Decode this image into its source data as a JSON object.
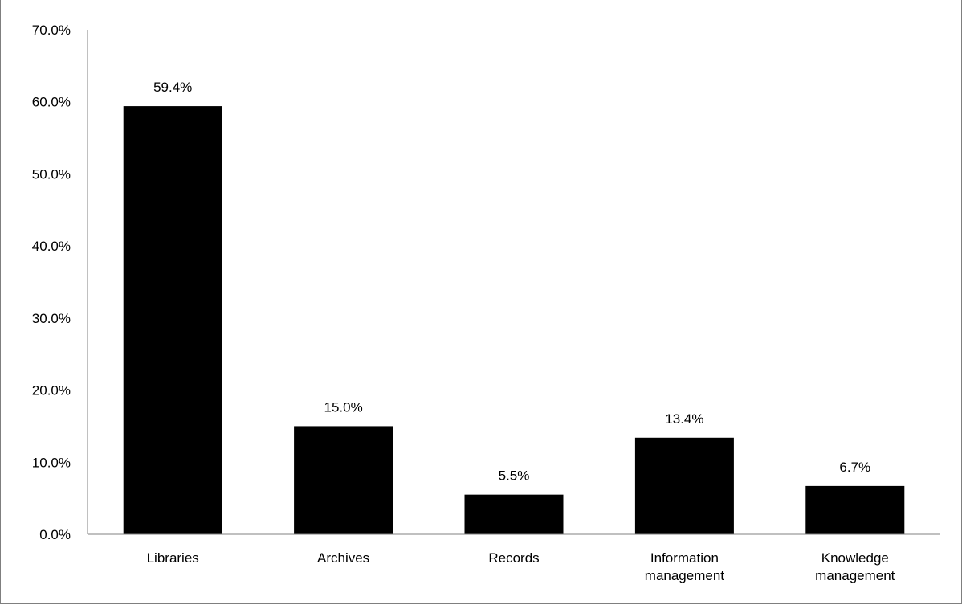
{
  "chart_data": {
    "type": "bar",
    "categories": [
      [
        "Libraries"
      ],
      [
        "Archives"
      ],
      [
        "Records"
      ],
      [
        "Information",
        "management"
      ],
      [
        "Knowledge",
        "management"
      ]
    ],
    "values": [
      59.4,
      15.0,
      5.5,
      13.4,
      6.7
    ],
    "data_labels": [
      "59.4%",
      "15.0%",
      "5.5%",
      "13.4%",
      "6.7%"
    ],
    "y_ticks": [
      0,
      10,
      20,
      30,
      40,
      50,
      60,
      70
    ],
    "y_tick_labels": [
      "0.0%",
      "10.0%",
      "20.0%",
      "30.0%",
      "40.0%",
      "50.0%",
      "60.0%",
      "70.0%"
    ],
    "ylim": [
      0,
      70
    ],
    "title": "",
    "xlabel": "",
    "ylabel": "",
    "grid": false,
    "legend": "none",
    "bar_color": "#000000",
    "axis_color": "#808080"
  }
}
